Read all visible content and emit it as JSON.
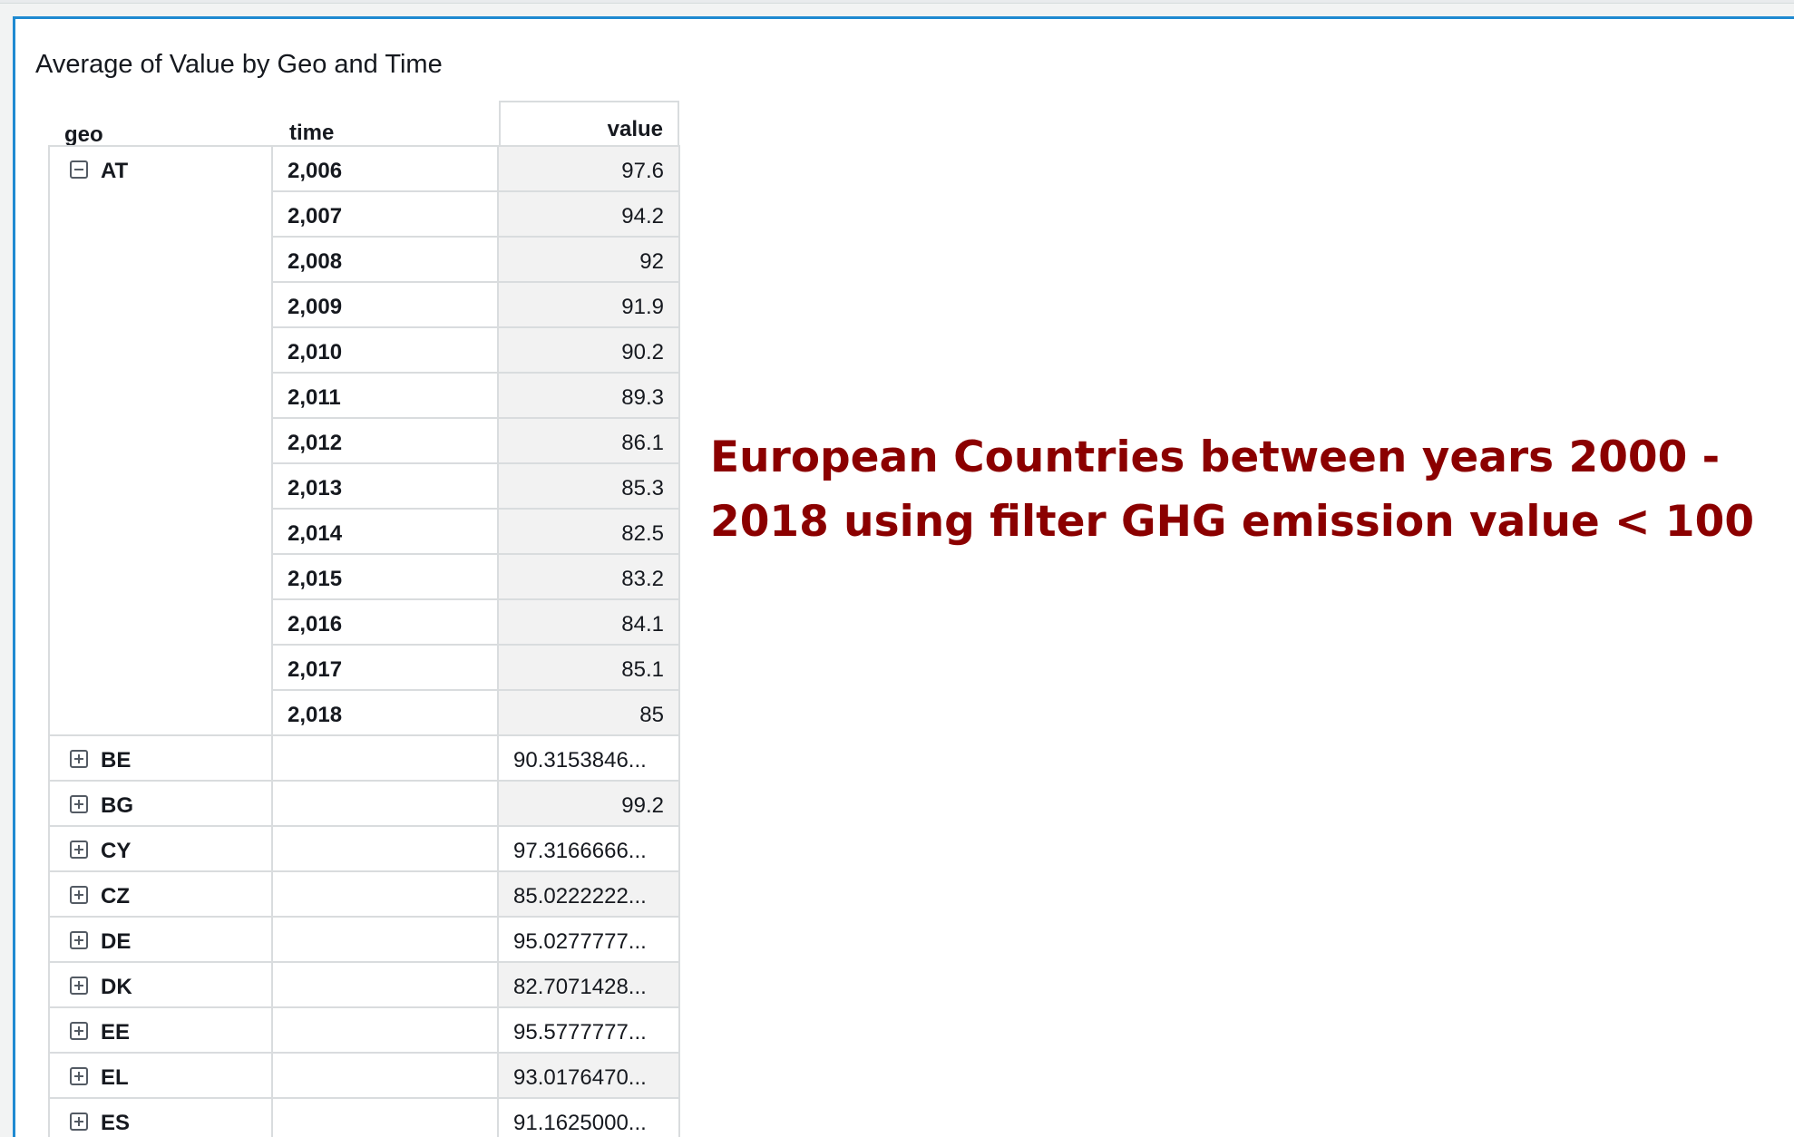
{
  "visual": {
    "title": "Average of Value by Geo and Time"
  },
  "pivot": {
    "headers": {
      "geo": "geo",
      "time": "time",
      "value": "value"
    },
    "expanded_group": {
      "geo": "AT",
      "rows": [
        {
          "time": "2,006",
          "value": "97.6"
        },
        {
          "time": "2,007",
          "value": "94.2"
        },
        {
          "time": "2,008",
          "value": "92"
        },
        {
          "time": "2,009",
          "value": "91.9"
        },
        {
          "time": "2,010",
          "value": "90.2"
        },
        {
          "time": "2,011",
          "value": "89.3"
        },
        {
          "time": "2,012",
          "value": "86.1"
        },
        {
          "time": "2,013",
          "value": "85.3"
        },
        {
          "time": "2,014",
          "value": "82.5"
        },
        {
          "time": "2,015",
          "value": "83.2"
        },
        {
          "time": "2,016",
          "value": "84.1"
        },
        {
          "time": "2,017",
          "value": "85.1"
        },
        {
          "time": "2,018",
          "value": "85"
        }
      ]
    },
    "collapsed_groups": [
      {
        "geo": "BE",
        "value": "90.3153846..."
      },
      {
        "geo": "BG",
        "value": "99.2"
      },
      {
        "geo": "CY",
        "value": "97.3166666..."
      },
      {
        "geo": "CZ",
        "value": "85.0222222..."
      },
      {
        "geo": "DE",
        "value": "95.0277777..."
      },
      {
        "geo": "DK",
        "value": "82.7071428..."
      },
      {
        "geo": "EE",
        "value": "95.5777777..."
      },
      {
        "geo": "EL",
        "value": "93.0176470..."
      },
      {
        "geo": "ES",
        "value": "91.1625000..."
      }
    ]
  },
  "annotation": {
    "line1": "European Countries between years 2000 -",
    "line2": "2018 using filter GHG emission value < 100"
  },
  "colors": {
    "panel_border": "#1f8ad1",
    "annotation_text": "#8b0000",
    "grid_line": "#d9dcde"
  },
  "icons": {
    "expanded": "collapse-minus-icon",
    "collapsed": "expand-plus-icon"
  }
}
